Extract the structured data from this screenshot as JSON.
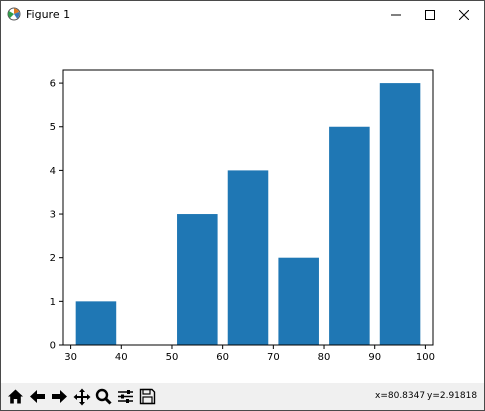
{
  "window": {
    "title": "Figure 1"
  },
  "toolbar": {
    "tools": [
      "home-icon",
      "back-arrow-icon",
      "forward-arrow-icon",
      "pan-icon",
      "zoom-icon",
      "configure-subplots-icon",
      "save-icon"
    ],
    "x_readout": "x=80.8347",
    "y_readout": "y=2.91818"
  },
  "colors": {
    "bar": "#1f77b4",
    "toolbar_bg": "#f0f0f0"
  },
  "chart_data": {
    "type": "bar",
    "x": [
      35,
      55,
      65,
      75,
      85,
      95
    ],
    "values": [
      1,
      3,
      4,
      2,
      5,
      6
    ],
    "bar_width": 8,
    "xlim": [
      28.5,
      101.5
    ],
    "ylim": [
      0,
      6.3
    ],
    "xticks": [
      30,
      40,
      50,
      60,
      70,
      80,
      90,
      100
    ],
    "yticks": [
      0,
      1,
      2,
      3,
      4,
      5,
      6
    ],
    "title": "",
    "xlabel": "",
    "ylabel": "",
    "grid": false,
    "legend": "none"
  }
}
